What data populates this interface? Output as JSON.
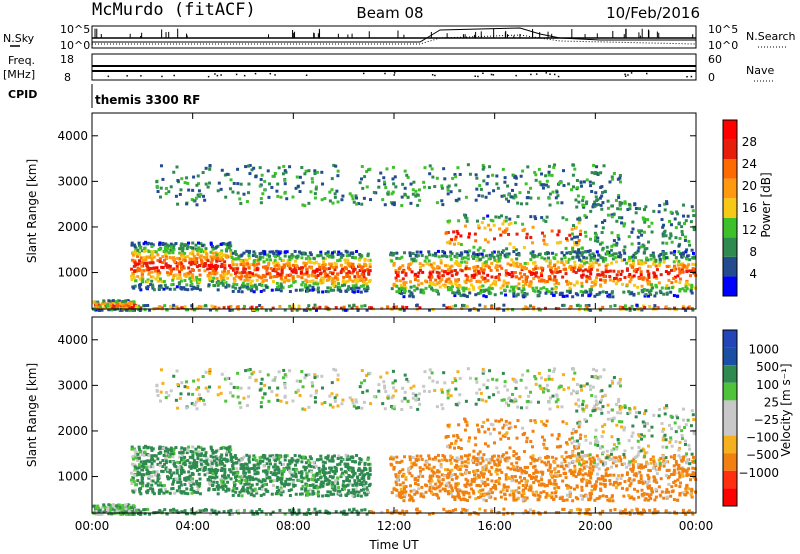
{
  "header": {
    "station": "McMurdo (fitACF)",
    "beam": "Beam 08",
    "date": "10/Feb/2016"
  },
  "status_panels": {
    "nsky_label": "N.Sky",
    "nsearch_label": "N.Search",
    "noise_ticks": [
      "10^5",
      "10^0"
    ],
    "freq_label_top": "Freq.",
    "freq_label_bottom": "[MHz]",
    "freq_ticks": [
      "18",
      "8"
    ],
    "nave_label": "Nave",
    "nave_ticks": [
      "60",
      "0"
    ],
    "cpid_label": "CPID",
    "cpid_value": "themis 3300 RF"
  },
  "colors": {
    "power": [
      "#0000ff",
      "#234c8f",
      "#2f8a50",
      "#3dc02a",
      "#f5c915",
      "#ff9a10",
      "#ff6a00",
      "#e61e0a",
      "#ff0000"
    ],
    "velocity": [
      "#2445b8",
      "#1a4fa3",
      "#2f8a50",
      "#4fc43a",
      "#c8c8c8",
      "#c8c8c8",
      "#f5b020",
      "#f08010",
      "#ff3010",
      "#ff0000"
    ]
  },
  "chart_data": [
    {
      "type": "heatmap",
      "name": "power",
      "ylabel": "Slant Range [km]",
      "ylim": [
        200,
        4500
      ],
      "yticks": [
        "1000",
        "2000",
        "3000",
        "4000"
      ],
      "ytick_values": [
        1000,
        2000,
        3000,
        4000
      ],
      "colorbar_label": "Power [dB]",
      "colorbar_ticks": [
        "4",
        "8",
        "12",
        "16",
        "20",
        "24",
        "28"
      ],
      "colorbar_values": [
        4,
        8,
        12,
        16,
        20,
        24,
        28
      ],
      "colorbar_range": [
        0,
        32
      ]
    },
    {
      "type": "heatmap",
      "name": "velocity",
      "ylabel": "Slant Range [km]",
      "ylim": [
        200,
        4500
      ],
      "yticks": [
        "1000",
        "2000",
        "3000",
        "4000"
      ],
      "ytick_values": [
        1000,
        2000,
        3000,
        4000
      ],
      "colorbar_label": "Velocity [m s⁻¹]",
      "colorbar_ticks": [
        "1000",
        "500",
        "100",
        "25",
        "−25",
        "−100",
        "−500",
        "−1000"
      ],
      "colorbar_values": [
        1000,
        500,
        100,
        25,
        -25,
        -100,
        -500,
        -1000
      ],
      "xlabel": "Time UT",
      "xticks": [
        "00:00",
        "04:00",
        "08:00",
        "12:00",
        "16:00",
        "20:00",
        "00:00"
      ],
      "xtick_hours": [
        0,
        4,
        8,
        12,
        16,
        20,
        24
      ],
      "xlim_hours": [
        0,
        24
      ]
    }
  ]
}
